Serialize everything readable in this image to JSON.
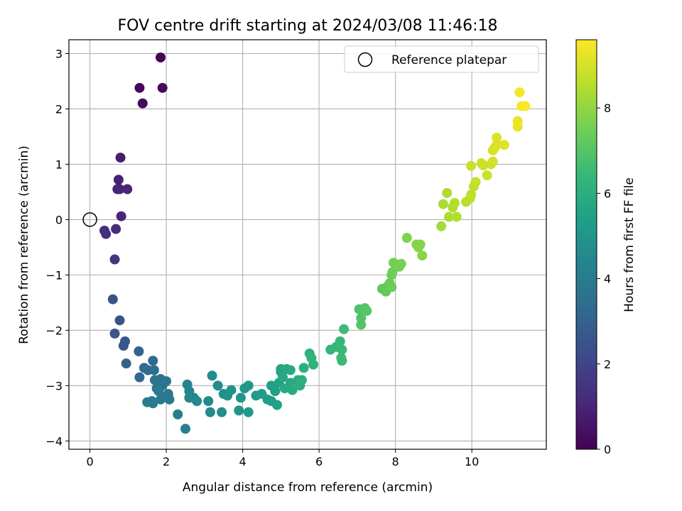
{
  "chart_data": {
    "type": "scatter",
    "title": "FOV centre drift starting at 2024/03/08 11:46:18",
    "xlabel": "Angular distance from reference (arcmin)",
    "ylabel": "Rotation from reference (arcmin)",
    "xlim": [
      -0.55,
      11.95
    ],
    "ylim": [
      -4.15,
      3.25
    ],
    "xticks": [
      0,
      2,
      4,
      6,
      8,
      10
    ],
    "yticks": [
      -4,
      -3,
      -2,
      -1,
      0,
      1,
      2,
      3
    ],
    "grid": true,
    "legend": {
      "position": "top-right",
      "entries": [
        {
          "label": "Reference platepar",
          "marker": "open-circle"
        }
      ]
    },
    "reference_point": {
      "x": 0,
      "y": 0
    },
    "colorbar": {
      "label": "Hours from first FF file",
      "colormap": "viridis",
      "range": [
        0,
        9.6
      ],
      "ticks": [
        0,
        2,
        4,
        6,
        8
      ]
    },
    "colormap_stops": [
      "#440154",
      "#482878",
      "#3e4989",
      "#31688e",
      "#26828e",
      "#1f9e89",
      "#35b779",
      "#6ece58",
      "#b5de2b",
      "#fde725"
    ],
    "points": [
      [
        1.85,
        2.93,
        0.1
      ],
      [
        1.3,
        2.38,
        0.2
      ],
      [
        1.9,
        2.38,
        0.25
      ],
      [
        1.38,
        2.1,
        0.3
      ],
      [
        0.8,
        1.12,
        0.8
      ],
      [
        0.75,
        0.72,
        0.9
      ],
      [
        0.72,
        0.55,
        0.95
      ],
      [
        0.78,
        0.55,
        1.0
      ],
      [
        0.98,
        0.55,
        1.0
      ],
      [
        0.82,
        0.06,
        1.05
      ],
      [
        0.68,
        -0.17,
        1.2
      ],
      [
        0.38,
        -0.2,
        1.3
      ],
      [
        0.42,
        -0.26,
        1.35
      ],
      [
        0.65,
        -0.72,
        1.5
      ],
      [
        0.6,
        -1.44,
        2.4
      ],
      [
        0.78,
        -1.82,
        2.5
      ],
      [
        0.65,
        -2.06,
        2.55
      ],
      [
        0.92,
        -2.2,
        2.6
      ],
      [
        0.88,
        -2.28,
        2.65
      ],
      [
        0.95,
        -2.6,
        3.0
      ],
      [
        1.28,
        -2.38,
        3.1
      ],
      [
        1.3,
        -2.85,
        3.2
      ],
      [
        1.42,
        -2.68,
        3.3
      ],
      [
        1.52,
        -2.72,
        3.35
      ],
      [
        1.65,
        -2.55,
        3.4
      ],
      [
        1.68,
        -2.72,
        3.5
      ],
      [
        1.7,
        -2.9,
        3.55
      ],
      [
        1.78,
        -2.95,
        3.6
      ],
      [
        1.75,
        -3.05,
        3.65
      ],
      [
        1.85,
        -2.88,
        3.7
      ],
      [
        1.9,
        -3.0,
        3.75
      ],
      [
        2.0,
        -2.92,
        3.8
      ],
      [
        2.05,
        -3.15,
        3.85
      ],
      [
        1.95,
        -3.2,
        3.9
      ],
      [
        2.08,
        -3.25,
        3.9
      ],
      [
        1.85,
        -3.25,
        3.95
      ],
      [
        1.8,
        -3.1,
        3.95
      ],
      [
        1.5,
        -3.3,
        4.0
      ],
      [
        1.65,
        -3.32,
        4.0
      ],
      [
        1.62,
        -3.28,
        4.05
      ],
      [
        2.3,
        -3.52,
        4.1
      ],
      [
        2.5,
        -3.78,
        4.2
      ],
      [
        2.55,
        -2.98,
        4.3
      ],
      [
        2.6,
        -3.1,
        4.35
      ],
      [
        2.6,
        -3.22,
        4.4
      ],
      [
        2.72,
        -3.22,
        4.45
      ],
      [
        2.8,
        -3.28,
        4.5
      ],
      [
        3.1,
        -3.28,
        4.55
      ],
      [
        3.15,
        -3.48,
        4.6
      ],
      [
        3.2,
        -2.82,
        4.65
      ],
      [
        3.35,
        -3.0,
        4.7
      ],
      [
        3.45,
        -3.48,
        4.75
      ],
      [
        3.5,
        -3.15,
        4.8
      ],
      [
        3.6,
        -3.18,
        4.85
      ],
      [
        3.7,
        -3.08,
        4.9
      ],
      [
        3.9,
        -3.45,
        4.95
      ],
      [
        3.95,
        -3.22,
        5.0
      ],
      [
        4.05,
        -3.05,
        5.05
      ],
      [
        4.15,
        -3.0,
        5.1
      ],
      [
        4.15,
        -3.48,
        5.15
      ],
      [
        4.35,
        -3.18,
        5.2
      ],
      [
        4.5,
        -3.15,
        5.25
      ],
      [
        4.65,
        -3.25,
        5.3
      ],
      [
        4.75,
        -3.28,
        5.35
      ],
      [
        4.75,
        -3.0,
        5.4
      ],
      [
        4.85,
        -3.1,
        5.45
      ],
      [
        4.9,
        -3.35,
        5.5
      ],
      [
        4.95,
        -2.95,
        5.55
      ],
      [
        5.0,
        -2.75,
        5.6
      ],
      [
        5.0,
        -2.7,
        5.65
      ],
      [
        5.05,
        -2.85,
        5.7
      ],
      [
        5.1,
        -3.05,
        5.75
      ],
      [
        5.15,
        -2.7,
        5.75
      ],
      [
        5.25,
        -2.72,
        5.8
      ],
      [
        5.25,
        -2.95,
        5.85
      ],
      [
        5.3,
        -3.08,
        5.85
      ],
      [
        5.45,
        -2.9,
        5.9
      ],
      [
        5.5,
        -3.0,
        5.95
      ],
      [
        5.55,
        -2.9,
        6.0
      ],
      [
        5.6,
        -2.68,
        6.05
      ],
      [
        5.75,
        -2.42,
        6.1
      ],
      [
        5.8,
        -2.5,
        6.15
      ],
      [
        5.85,
        -2.62,
        6.2
      ],
      [
        6.3,
        -2.35,
        6.3
      ],
      [
        6.45,
        -2.3,
        6.35
      ],
      [
        6.55,
        -2.2,
        6.4
      ],
      [
        6.6,
        -2.35,
        6.45
      ],
      [
        6.58,
        -2.5,
        6.5
      ],
      [
        6.6,
        -2.55,
        6.5
      ],
      [
        6.65,
        -1.98,
        6.6
      ],
      [
        7.05,
        -1.62,
        6.9
      ],
      [
        7.1,
        -1.78,
        6.95
      ],
      [
        7.1,
        -1.9,
        7.0
      ],
      [
        7.2,
        -1.6,
        7.0
      ],
      [
        7.25,
        -1.65,
        7.05
      ],
      [
        7.65,
        -1.25,
        7.2
      ],
      [
        7.75,
        -1.3,
        7.25
      ],
      [
        7.8,
        -1.2,
        7.3
      ],
      [
        7.85,
        -1.15,
        7.35
      ],
      [
        7.9,
        -1.22,
        7.4
      ],
      [
        7.9,
        -1.0,
        7.4
      ],
      [
        7.92,
        -0.95,
        7.45
      ],
      [
        7.95,
        -0.78,
        7.5
      ],
      [
        8.1,
        -0.85,
        7.55
      ],
      [
        8.15,
        -0.8,
        7.6
      ],
      [
        8.3,
        -0.33,
        7.7
      ],
      [
        8.55,
        -0.45,
        7.75
      ],
      [
        8.6,
        -0.5,
        7.8
      ],
      [
        8.65,
        -0.45,
        7.8
      ],
      [
        8.7,
        -0.65,
        7.85
      ],
      [
        9.2,
        -0.12,
        8.3
      ],
      [
        9.25,
        0.28,
        8.35
      ],
      [
        9.35,
        0.48,
        8.4
      ],
      [
        9.4,
        0.05,
        8.4
      ],
      [
        9.5,
        0.22,
        8.45
      ],
      [
        9.55,
        0.3,
        8.5
      ],
      [
        9.6,
        0.05,
        8.5
      ],
      [
        9.85,
        0.32,
        8.6
      ],
      [
        9.95,
        0.38,
        8.65
      ],
      [
        9.98,
        0.45,
        8.65
      ],
      [
        10.05,
        0.6,
        8.7
      ],
      [
        10.1,
        0.68,
        8.75
      ],
      [
        9.98,
        0.97,
        8.8
      ],
      [
        10.25,
        1.02,
        8.85
      ],
      [
        10.3,
        0.98,
        8.85
      ],
      [
        10.4,
        0.8,
        8.9
      ],
      [
        10.5,
        1.0,
        8.9
      ],
      [
        10.55,
        1.05,
        8.95
      ],
      [
        10.55,
        1.25,
        9.0
      ],
      [
        10.6,
        1.3,
        9.05
      ],
      [
        10.65,
        1.48,
        9.1
      ],
      [
        10.65,
        1.35,
        9.1
      ],
      [
        10.85,
        1.35,
        9.15
      ],
      [
        11.2,
        1.68,
        9.3
      ],
      [
        11.2,
        1.78,
        9.35
      ],
      [
        11.25,
        2.3,
        9.45
      ],
      [
        11.3,
        2.05,
        9.5
      ],
      [
        11.4,
        2.05,
        9.55
      ]
    ]
  }
}
